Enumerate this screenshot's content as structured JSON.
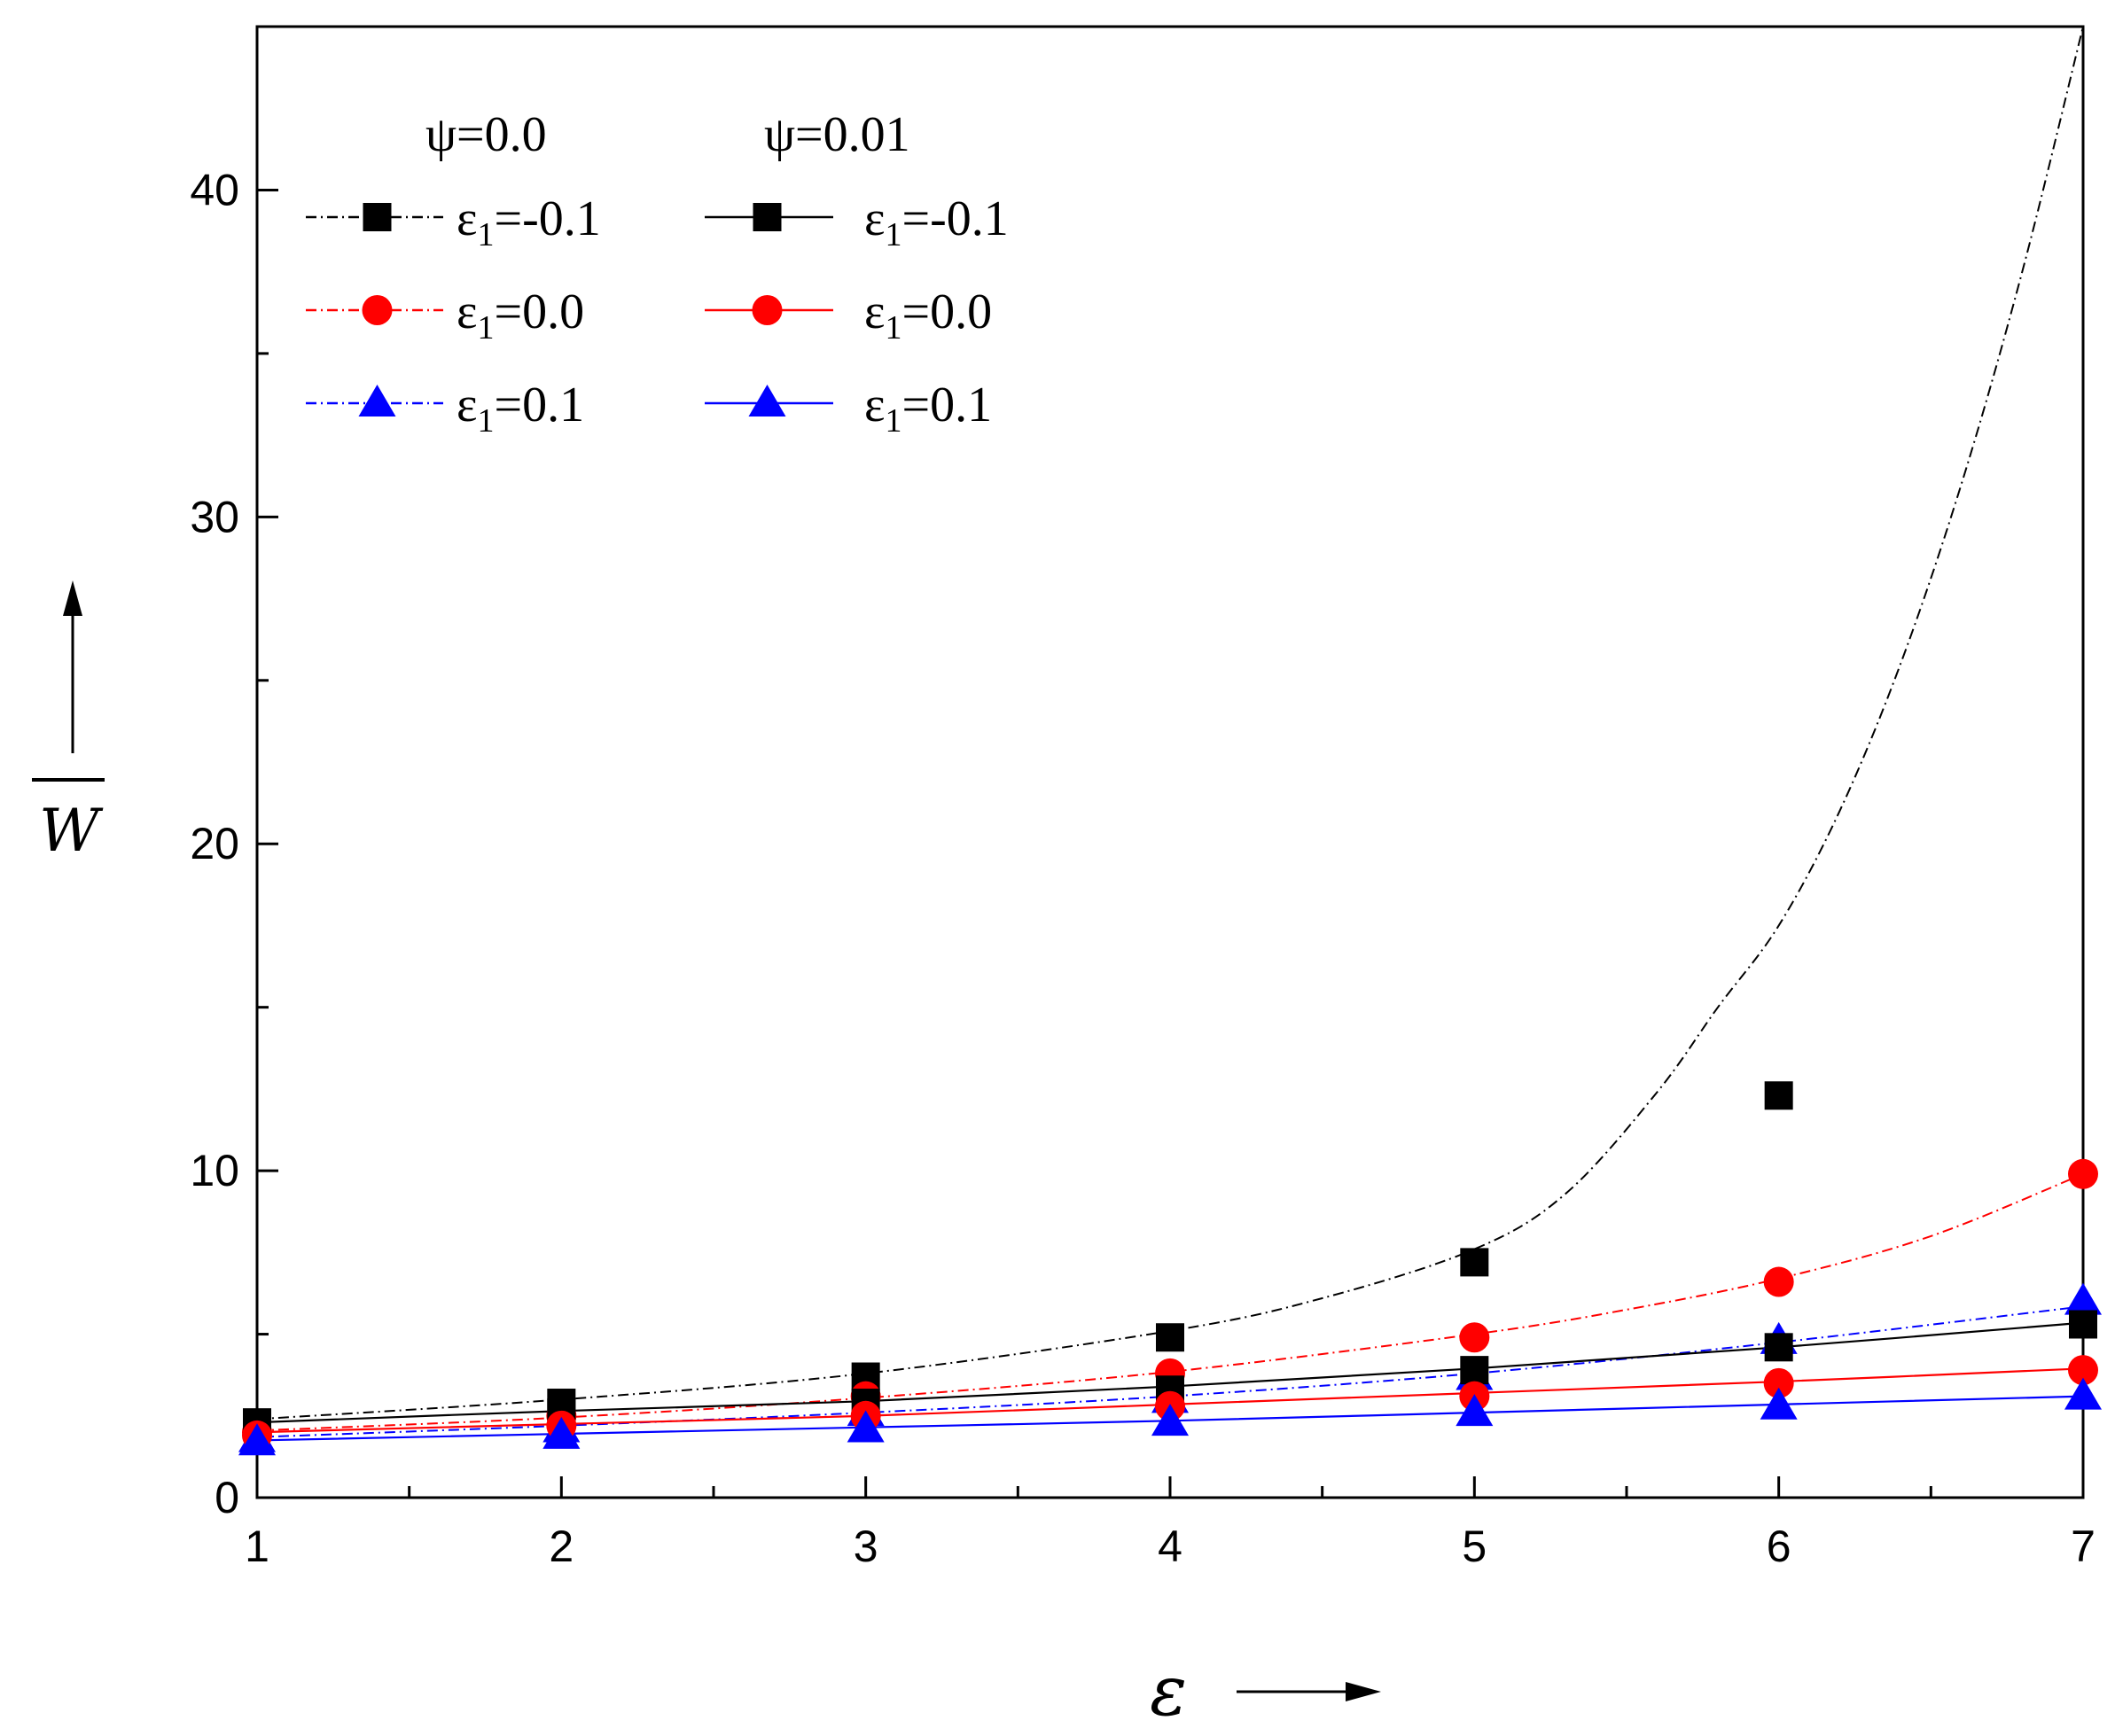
{
  "chart_data": {
    "type": "line",
    "title": "",
    "xlabel": "ε",
    "ylabel": "W",
    "xlim": [
      1,
      7
    ],
    "ylim": [
      0,
      45
    ],
    "x_ticks": [
      1,
      2,
      3,
      4,
      5,
      6,
      7
    ],
    "x_tick_labels": [
      "1",
      "2",
      "3",
      "4",
      "5",
      "6",
      "7"
    ],
    "y_ticks": [
      0,
      10,
      20,
      30,
      40
    ],
    "y_tick_labels": [
      "0",
      "10",
      "20",
      "30",
      "40"
    ],
    "legend_headers": [
      "ψ=0.0",
      "ψ=0.01"
    ],
    "legend_position": "top-left",
    "marker_x": [
      1,
      2,
      3,
      4,
      5,
      6,
      7
    ],
    "series": [
      {
        "name": "ψ=0.0, ε1=-0.1",
        "label_main": "ε",
        "label_sub": "1",
        "label_value": "=-0.1",
        "psi": "0.0",
        "line_style": "dash-dot",
        "marker": "square",
        "color": "#000000",
        "curve": [
          [
            1,
            2.4
          ],
          [
            2,
            3.0
          ],
          [
            3,
            3.8
          ],
          [
            4,
            5.1
          ],
          [
            4.5,
            6.1
          ],
          [
            5,
            7.6
          ],
          [
            5.3,
            9.3
          ],
          [
            5.6,
            12.4
          ],
          [
            5.8,
            15.0
          ],
          [
            6,
            17.5
          ],
          [
            6.2,
            21.0
          ],
          [
            6.4,
            25.5
          ],
          [
            6.6,
            31.0
          ],
          [
            6.8,
            37.5
          ],
          [
            7,
            45.0
          ]
        ],
        "markers": [
          2.3,
          2.9,
          3.7,
          4.9,
          7.2,
          12.3,
          null
        ]
      },
      {
        "name": "ψ=0.0, ε1=0.0",
        "label_main": "ε",
        "label_sub": "1",
        "label_value": "=0.0",
        "psi": "0.0",
        "line_style": "dash-dot",
        "marker": "circle",
        "color": "#ff0000",
        "curve": [
          [
            1,
            2.05
          ],
          [
            2,
            2.45
          ],
          [
            3,
            3.05
          ],
          [
            4,
            3.85
          ],
          [
            5,
            5.0
          ],
          [
            5.5,
            5.75
          ],
          [
            6,
            6.7
          ],
          [
            6.5,
            8.0
          ],
          [
            7,
            9.9
          ]
        ],
        "markers": [
          2.0,
          2.5,
          3.1,
          3.8,
          4.9,
          6.6,
          9.9
        ]
      },
      {
        "name": "ψ=0.0, ε1=0.1",
        "label_main": "ε",
        "label_sub": "1",
        "label_value": "=0.1",
        "psi": "0.0",
        "line_style": "dash-dot",
        "marker": "triangle",
        "color": "#0000ff",
        "curve": [
          [
            1,
            1.85
          ],
          [
            2,
            2.2
          ],
          [
            3,
            2.6
          ],
          [
            4,
            3.1
          ],
          [
            5,
            3.8
          ],
          [
            6,
            4.75
          ],
          [
            7,
            5.85
          ]
        ],
        "markers": [
          1.8,
          2.1,
          2.6,
          3.0,
          3.7,
          4.8,
          6.0
        ]
      },
      {
        "name": "ψ=0.01, ε1=-0.1",
        "label_main": "ε",
        "label_sub": "1",
        "label_value": "=-0.1",
        "psi": "0.01",
        "line_style": "solid",
        "marker": "square",
        "color": "#000000",
        "curve": [
          [
            1,
            2.3
          ],
          [
            2,
            2.65
          ],
          [
            3,
            2.95
          ],
          [
            4,
            3.4
          ],
          [
            5,
            3.95
          ],
          [
            6,
            4.6
          ],
          [
            7,
            5.35
          ]
        ],
        "markers": [
          2.2,
          2.6,
          2.9,
          3.3,
          3.9,
          4.6,
          5.3
        ]
      },
      {
        "name": "ψ=0.01, ε1=0.0",
        "label_main": "ε",
        "label_sub": "1",
        "label_value": "=0.0",
        "psi": "0.01",
        "line_style": "solid",
        "marker": "circle",
        "color": "#ff0000",
        "curve": [
          [
            1,
            2.0
          ],
          [
            2,
            2.25
          ],
          [
            3,
            2.5
          ],
          [
            4,
            2.85
          ],
          [
            5,
            3.2
          ],
          [
            6,
            3.55
          ],
          [
            7,
            3.95
          ]
        ],
        "markers": [
          1.9,
          2.2,
          2.5,
          2.8,
          3.1,
          3.5,
          3.9
        ]
      },
      {
        "name": "ψ=0.01, ε1=0.1",
        "label_main": "ε",
        "label_sub": "1",
        "label_value": "=0.1",
        "psi": "0.01",
        "line_style": "solid",
        "marker": "triangle",
        "color": "#0000ff",
        "curve": [
          [
            1,
            1.75
          ],
          [
            2,
            1.95
          ],
          [
            3,
            2.15
          ],
          [
            4,
            2.35
          ],
          [
            5,
            2.6
          ],
          [
            6,
            2.85
          ],
          [
            7,
            3.1
          ]
        ],
        "markers": [
          1.7,
          1.9,
          2.1,
          2.3,
          2.6,
          2.8,
          3.1
        ]
      }
    ]
  }
}
